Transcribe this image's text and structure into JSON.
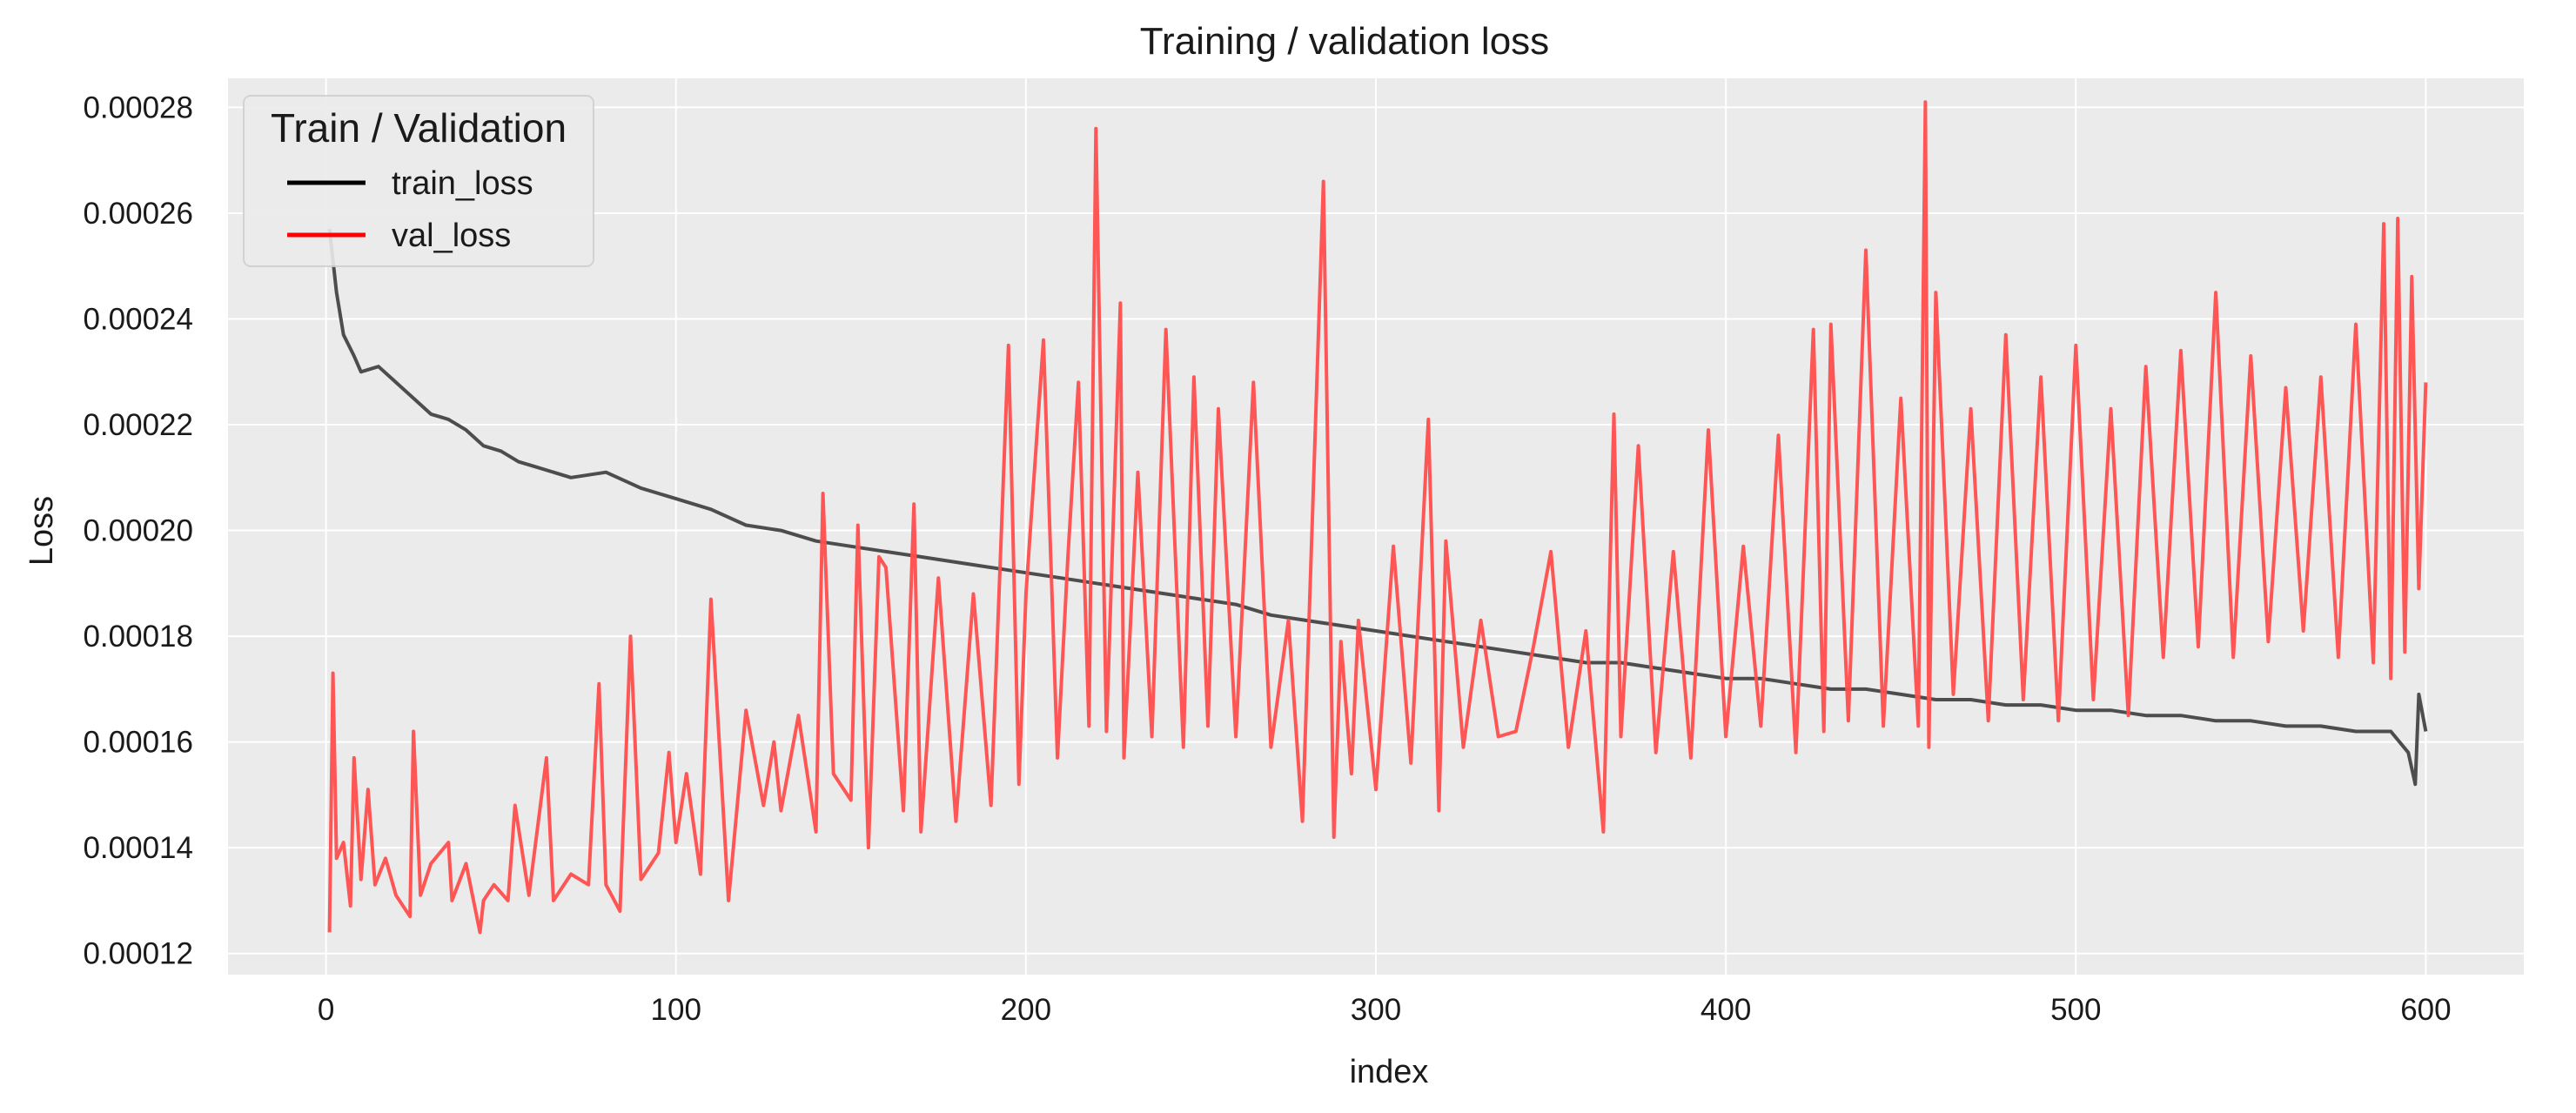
{
  "chart_data": {
    "type": "line",
    "title": "Training / validation loss",
    "xlabel": "index",
    "ylabel": "Loss",
    "xlim": [
      -28,
      628
    ],
    "ylim": [
      0.000116,
      0.0002855
    ],
    "x_ticks": [
      0,
      100,
      200,
      300,
      400,
      500,
      600
    ],
    "x_tick_labels": [
      "0",
      "100",
      "200",
      "300",
      "400",
      "500",
      "600"
    ],
    "y_ticks": [
      0.00012,
      0.00014,
      0.00016,
      0.00018,
      0.0002,
      0.00022,
      0.00024,
      0.00026,
      0.00028
    ],
    "y_tick_labels": [
      "0.00012",
      "0.00014",
      "0.00016",
      "0.00018",
      "0.00020",
      "0.00022",
      "0.00024",
      "0.00026",
      "0.00028"
    ],
    "grid": true,
    "background": "#ebebeb",
    "legend": {
      "title": "Train / Validation",
      "placement": "top-left",
      "entries": [
        {
          "label": "train_loss",
          "color": "#000000"
        },
        {
          "label": "val_loss",
          "color": "#ff0000"
        }
      ]
    },
    "series": [
      {
        "name": "train_loss",
        "color": "#4d4d4d",
        "x": [
          1,
          3,
          5,
          8,
          10,
          15,
          20,
          25,
          30,
          35,
          40,
          45,
          50,
          55,
          60,
          70,
          80,
          90,
          100,
          110,
          120,
          130,
          140,
          150,
          160,
          170,
          180,
          190,
          200,
          210,
          220,
          230,
          240,
          250,
          260,
          270,
          280,
          290,
          300,
          310,
          320,
          330,
          340,
          350,
          360,
          370,
          380,
          390,
          400,
          410,
          420,
          430,
          440,
          450,
          460,
          470,
          480,
          490,
          500,
          510,
          520,
          530,
          540,
          550,
          560,
          570,
          580,
          590,
          595,
          597,
          598,
          600
        ],
        "y": [
          0.000257,
          0.000245,
          0.000237,
          0.000233,
          0.00023,
          0.000231,
          0.000228,
          0.000225,
          0.000222,
          0.000221,
          0.000219,
          0.000216,
          0.000215,
          0.000213,
          0.000212,
          0.00021,
          0.000211,
          0.000208,
          0.000206,
          0.000204,
          0.000201,
          0.0002,
          0.000198,
          0.000197,
          0.000196,
          0.000195,
          0.000194,
          0.000193,
          0.000192,
          0.000191,
          0.00019,
          0.000189,
          0.000188,
          0.000187,
          0.000186,
          0.000184,
          0.000183,
          0.000182,
          0.000181,
          0.00018,
          0.000179,
          0.000178,
          0.000177,
          0.000176,
          0.000175,
          0.000175,
          0.000174,
          0.000173,
          0.000172,
          0.000172,
          0.000171,
          0.00017,
          0.00017,
          0.000169,
          0.000168,
          0.000168,
          0.000167,
          0.000167,
          0.000166,
          0.000166,
          0.000165,
          0.000165,
          0.000164,
          0.000164,
          0.000163,
          0.000163,
          0.000162,
          0.000162,
          0.000158,
          0.000152,
          0.000169,
          0.000162
        ]
      },
      {
        "name": "val_loss",
        "color": "#ff4d4d",
        "x": [
          1,
          2,
          3,
          5,
          7,
          8,
          10,
          12,
          14,
          17,
          20,
          24,
          25,
          27,
          30,
          35,
          36,
          40,
          44,
          45,
          48,
          52,
          54,
          58,
          63,
          65,
          70,
          75,
          78,
          80,
          84,
          87,
          90,
          95,
          98,
          100,
          103,
          107,
          110,
          115,
          120,
          125,
          128,
          130,
          135,
          140,
          142,
          145,
          150,
          152,
          155,
          158,
          160,
          165,
          168,
          170,
          175,
          180,
          185,
          190,
          195,
          198,
          200,
          205,
          209,
          212,
          215,
          218,
          220,
          223,
          227,
          228,
          232,
          236,
          240,
          245,
          248,
          252,
          255,
          260,
          265,
          270,
          275,
          279,
          285,
          288,
          290,
          293,
          295,
          300,
          305,
          310,
          315,
          318,
          320,
          325,
          330,
          335,
          340,
          345,
          350,
          355,
          360,
          365,
          368,
          370,
          375,
          380,
          385,
          390,
          395,
          400,
          405,
          410,
          415,
          420,
          425,
          428,
          430,
          435,
          440,
          445,
          450,
          455,
          457,
          458,
          460,
          465,
          470,
          475,
          480,
          485,
          490,
          495,
          500,
          505,
          510,
          515,
          520,
          525,
          530,
          535,
          540,
          545,
          550,
          555,
          560,
          565,
          570,
          575,
          580,
          585,
          588,
          590,
          592,
          594,
          596,
          598,
          600
        ],
        "y": [
          0.000124,
          0.000173,
          0.000138,
          0.000141,
          0.000129,
          0.000157,
          0.000134,
          0.000151,
          0.000133,
          0.000138,
          0.000131,
          0.000127,
          0.000162,
          0.000131,
          0.000137,
          0.000141,
          0.00013,
          0.000137,
          0.000124,
          0.00013,
          0.000133,
          0.00013,
          0.000148,
          0.000131,
          0.000157,
          0.00013,
          0.000135,
          0.000133,
          0.000171,
          0.000133,
          0.000128,
          0.00018,
          0.000134,
          0.000139,
          0.000158,
          0.000141,
          0.000154,
          0.000135,
          0.000187,
          0.00013,
          0.000166,
          0.000148,
          0.00016,
          0.000147,
          0.000165,
          0.000143,
          0.000207,
          0.000154,
          0.000149,
          0.000201,
          0.00014,
          0.000195,
          0.000193,
          0.000147,
          0.000205,
          0.000143,
          0.000191,
          0.000145,
          0.000188,
          0.000148,
          0.000235,
          0.000152,
          0.000188,
          0.000236,
          0.000157,
          0.000195,
          0.000228,
          0.000163,
          0.000276,
          0.000162,
          0.000243,
          0.000157,
          0.000211,
          0.000161,
          0.000238,
          0.000159,
          0.000229,
          0.000163,
          0.000223,
          0.000161,
          0.000228,
          0.000159,
          0.000183,
          0.000145,
          0.000266,
          0.000142,
          0.000179,
          0.000154,
          0.000183,
          0.000151,
          0.000197,
          0.000156,
          0.000221,
          0.000147,
          0.000198,
          0.000159,
          0.000183,
          0.000161,
          0.000162,
          0.000178,
          0.000196,
          0.000159,
          0.000181,
          0.000143,
          0.000222,
          0.000161,
          0.000216,
          0.000158,
          0.000196,
          0.000157,
          0.000219,
          0.000161,
          0.000197,
          0.000163,
          0.000218,
          0.000158,
          0.000238,
          0.000162,
          0.000239,
          0.000164,
          0.000253,
          0.000163,
          0.000225,
          0.000163,
          0.000281,
          0.000159,
          0.000245,
          0.000169,
          0.000223,
          0.000164,
          0.000237,
          0.000168,
          0.000229,
          0.000164,
          0.000235,
          0.000168,
          0.000223,
          0.000165,
          0.000231,
          0.000176,
          0.000234,
          0.000178,
          0.000245,
          0.000176,
          0.000233,
          0.000179,
          0.000227,
          0.000181,
          0.000229,
          0.000176,
          0.000239,
          0.000175,
          0.000258,
          0.000172,
          0.000259,
          0.000177,
          0.000248,
          0.000189,
          0.000228
        ]
      }
    ]
  }
}
